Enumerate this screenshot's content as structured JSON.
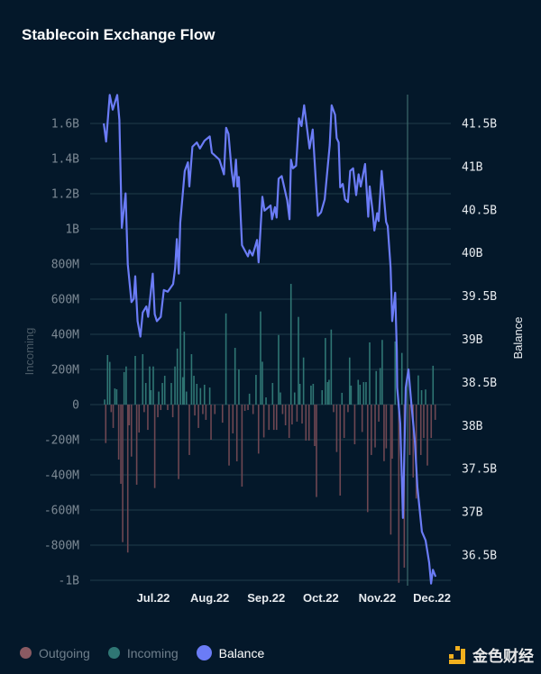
{
  "title": "Stablecoin Exchange Flow",
  "legend": [
    {
      "label": "Outgoing",
      "color": "#8a5a62"
    },
    {
      "label": "Incoming",
      "color": "#2f7674"
    },
    {
      "label": "Balance",
      "color": "#6b7cf6"
    }
  ],
  "watermark": "金色财经",
  "chart_data": {
    "type": "bar+line",
    "title": "Stablecoin Exchange Flow",
    "x_unit": "days since 2022-07-01",
    "x_ticks": [
      {
        "label": "Jul.22",
        "day": 0
      },
      {
        "label": "Aug.22",
        "day": 31
      },
      {
        "label": "Sep.22",
        "day": 62
      },
      {
        "label": "Oct.22",
        "day": 92
      },
      {
        "label": "Nov.22",
        "day": 123
      },
      {
        "label": "Dec.22",
        "day": 153
      }
    ],
    "left_axis": {
      "label": "Incoming",
      "unit": "M",
      "ylim": [
        -1000,
        1600
      ],
      "ticks": [
        {
          "label": "1.6B",
          "value": 1600
        },
        {
          "label": "1.4B",
          "value": 1400
        },
        {
          "label": "1.2B",
          "value": 1200
        },
        {
          "label": "1B",
          "value": 1000
        },
        {
          "label": "800M",
          "value": 800
        },
        {
          "label": "600M",
          "value": 600
        },
        {
          "label": "400M",
          "value": 400
        },
        {
          "label": "200M",
          "value": 200
        },
        {
          "label": "0",
          "value": 0
        },
        {
          "label": "-200M",
          "value": -200
        },
        {
          "label": "-400M",
          "value": -400
        },
        {
          "label": "-600M",
          "value": -600
        },
        {
          "label": "-800M",
          "value": -800
        },
        {
          "label": "-1B",
          "value": -1000
        }
      ]
    },
    "right_axis": {
      "label": "Balance",
      "unit": "B",
      "ylim": [
        36.17,
        41.5
      ],
      "ticks": [
        {
          "label": "41.5B",
          "value": 41.5
        },
        {
          "label": "41B",
          "value": 41
        },
        {
          "label": "40.5B",
          "value": 40.5
        },
        {
          "label": "40B",
          "value": 40
        },
        {
          "label": "39.5B",
          "value": 39.5
        },
        {
          "label": "39B",
          "value": 39
        },
        {
          "label": "38.5B",
          "value": 38.5
        },
        {
          "label": "38B",
          "value": 38
        },
        {
          "label": "37.5B",
          "value": 37.5
        },
        {
          "label": "37B",
          "value": 37
        },
        {
          "label": "36.5B",
          "value": 36.5
        }
      ]
    },
    "grid": true,
    "legend_position": "bottom-left",
    "series": [
      {
        "name": "Incoming",
        "type": "bar",
        "points": [
          [
            -26.7,
            29
          ],
          [
            -25.1,
            282
          ],
          [
            -23.9,
            243
          ],
          [
            -21.1,
            92
          ],
          [
            -20.1,
            87
          ],
          [
            -16.0,
            185
          ],
          [
            -14.9,
            217
          ],
          [
            -9.9,
            277
          ],
          [
            -5.8,
            287
          ],
          [
            -4.1,
            123
          ],
          [
            -2.0,
            217
          ],
          [
            -1.3,
            82
          ],
          [
            0,
            217
          ],
          [
            3.0,
            74
          ],
          [
            5.0,
            123
          ],
          [
            6.3,
            164
          ],
          [
            9.9,
            123
          ],
          [
            11.9,
            217
          ],
          [
            13.2,
            319
          ],
          [
            14.9,
            585
          ],
          [
            16.2,
            156
          ],
          [
            17.0,
            415
          ],
          [
            18.2,
            74
          ],
          [
            21.0,
            287
          ],
          [
            22.3,
            164
          ],
          [
            23.9,
            118
          ],
          [
            25.9,
            94
          ],
          [
            28.1,
            113
          ],
          [
            31.0,
            97
          ],
          [
            39.9,
            519
          ],
          [
            44.9,
            323
          ],
          [
            47.0,
            200
          ],
          [
            52.8,
            62
          ],
          [
            56.4,
            169
          ],
          [
            58.9,
            530
          ],
          [
            59.9,
            244
          ],
          [
            61.9,
            41
          ],
          [
            65.5,
            123
          ],
          [
            68.8,
            396
          ],
          [
            69.8,
            69
          ],
          [
            75.6,
            687
          ],
          [
            77.6,
            69
          ],
          [
            79.7,
            499
          ],
          [
            80.5,
            118
          ],
          [
            82.5,
            268
          ],
          [
            86.6,
            108
          ],
          [
            87.8,
            118
          ],
          [
            92.7,
            82
          ],
          [
            94.5,
            379
          ],
          [
            95.7,
            128
          ],
          [
            96.5,
            141
          ],
          [
            97.7,
            427
          ],
          [
            103.6,
            67
          ],
          [
            107.8,
            268
          ],
          [
            108.6,
            108
          ],
          [
            112.5,
            141
          ],
          [
            113.5,
            113
          ],
          [
            115.5,
            128
          ],
          [
            116.8,
            128
          ],
          [
            118.8,
            354
          ],
          [
            122.4,
            191
          ],
          [
            124.6,
            208
          ],
          [
            125.7,
            368
          ],
          [
            132.8,
            359
          ],
          [
            136.5,
            294
          ],
          [
            145.5,
            166
          ],
          [
            147.3,
            82
          ],
          [
            149.5,
            86
          ],
          [
            153.6,
            221
          ]
        ]
      },
      {
        "name": "Outgoing",
        "type": "bar",
        "points": [
          [
            -26.1,
            -219
          ],
          [
            -23.1,
            -43
          ],
          [
            -22.0,
            -133
          ],
          [
            -19.0,
            -313
          ],
          [
            -17.8,
            -451
          ],
          [
            -16.8,
            -783
          ],
          [
            -14.0,
            -842
          ],
          [
            -13.2,
            -118
          ],
          [
            -12.0,
            -296
          ],
          [
            -9.1,
            -456
          ],
          [
            -7.8,
            -159
          ],
          [
            -5.0,
            -43
          ],
          [
            -3.0,
            -144
          ],
          [
            0.8,
            -475
          ],
          [
            2.5,
            -72
          ],
          [
            4.1,
            -31
          ],
          [
            7.9,
            -31
          ],
          [
            10.7,
            -72
          ],
          [
            13.9,
            -424
          ],
          [
            19.8,
            -287
          ],
          [
            22.8,
            -62
          ],
          [
            24.8,
            -133
          ],
          [
            27.2,
            -54
          ],
          [
            28.9,
            -87
          ],
          [
            31.7,
            -200
          ],
          [
            33.8,
            -54
          ],
          [
            38.0,
            -103
          ],
          [
            41.6,
            -347
          ],
          [
            43.7,
            -164
          ],
          [
            45.9,
            -323
          ],
          [
            48.7,
            -467
          ],
          [
            50.3,
            -36
          ],
          [
            52.0,
            -31
          ],
          [
            54.8,
            -54
          ],
          [
            57.8,
            -279
          ],
          [
            60.7,
            -187
          ],
          [
            63.5,
            -144
          ],
          [
            66.2,
            -144
          ],
          [
            67.7,
            -144
          ],
          [
            71.0,
            -54
          ],
          [
            72.6,
            -118
          ],
          [
            74.6,
            -190
          ],
          [
            76.2,
            -113
          ],
          [
            78.9,
            -97
          ],
          [
            81.7,
            -108
          ],
          [
            83.8,
            -205
          ],
          [
            85.5,
            -205
          ],
          [
            88.6,
            -236
          ],
          [
            89.6,
            -526
          ],
          [
            99.0,
            -43
          ],
          [
            100.7,
            -270
          ],
          [
            102.6,
            -518
          ],
          [
            104.8,
            -190
          ],
          [
            106.9,
            -43
          ],
          [
            110.6,
            -226
          ],
          [
            114.7,
            -156
          ],
          [
            117.7,
            -612
          ],
          [
            119.7,
            -287
          ],
          [
            121.8,
            -244
          ],
          [
            123.8,
            -97
          ],
          [
            126.7,
            -322
          ],
          [
            127.9,
            -249
          ],
          [
            130.4,
            -740
          ],
          [
            131.2,
            -308
          ],
          [
            134.8,
            -1014
          ],
          [
            137.8,
            -928
          ],
          [
            140.8,
            -287
          ],
          [
            142.7,
            -415
          ],
          [
            144.4,
            -535
          ],
          [
            146.9,
            -287
          ],
          [
            148.5,
            -190
          ],
          [
            150.5,
            -347
          ],
          [
            152.6,
            -190
          ],
          [
            154.8,
            -87
          ]
        ]
      },
      {
        "name": "Balance",
        "type": "line",
        "axis": "right",
        "points": [
          [
            -27.2,
            41.5
          ],
          [
            -25.9,
            41.29
          ],
          [
            -23.9,
            41.83
          ],
          [
            -22.3,
            41.66
          ],
          [
            -19.8,
            41.83
          ],
          [
            -18.6,
            41.54
          ],
          [
            -17.3,
            40.29
          ],
          [
            -15.2,
            40.69
          ],
          [
            -14.0,
            39.87
          ],
          [
            -12.0,
            39.43
          ],
          [
            -10.7,
            39.47
          ],
          [
            -9.9,
            39.73
          ],
          [
            -8.6,
            39.21
          ],
          [
            -7.1,
            39.03
          ],
          [
            -5.8,
            39.31
          ],
          [
            -3.8,
            39.38
          ],
          [
            -2.8,
            39.26
          ],
          [
            -0.3,
            39.76
          ],
          [
            0.8,
            39.29
          ],
          [
            2.0,
            39.21
          ],
          [
            4.1,
            39.26
          ],
          [
            5.8,
            39.57
          ],
          [
            7.9,
            39.55
          ],
          [
            10.9,
            39.64
          ],
          [
            12.0,
            39.82
          ],
          [
            12.9,
            40.16
          ],
          [
            14.0,
            39.76
          ],
          [
            14.8,
            40.35
          ],
          [
            17.3,
            40.95
          ],
          [
            19.0,
            41.05
          ],
          [
            19.8,
            40.77
          ],
          [
            21.5,
            41.23
          ],
          [
            23.9,
            41.28
          ],
          [
            25.6,
            41.21
          ],
          [
            28.1,
            41.3
          ],
          [
            31.0,
            41.35
          ],
          [
            32.2,
            41.16
          ],
          [
            36.3,
            41.08
          ],
          [
            38.8,
            40.91
          ],
          [
            40.0,
            41.45
          ],
          [
            41.3,
            41.38
          ],
          [
            43.0,
            40.95
          ],
          [
            44.2,
            40.77
          ],
          [
            45.4,
            41.08
          ],
          [
            46.2,
            40.77
          ],
          [
            47.0,
            40.88
          ],
          [
            48.7,
            40.09
          ],
          [
            52.0,
            39.96
          ],
          [
            52.8,
            40.03
          ],
          [
            54.5,
            39.97
          ],
          [
            57.0,
            40.15
          ],
          [
            57.8,
            39.89
          ],
          [
            59.9,
            40.65
          ],
          [
            61.1,
            40.49
          ],
          [
            64.4,
            40.55
          ],
          [
            65.2,
            40.39
          ],
          [
            66.8,
            40.53
          ],
          [
            67.7,
            40.41
          ],
          [
            68.8,
            40.86
          ],
          [
            70.5,
            40.89
          ],
          [
            73.5,
            40.61
          ],
          [
            74.8,
            40.39
          ],
          [
            75.6,
            41.08
          ],
          [
            76.7,
            40.98
          ],
          [
            78.4,
            41.01
          ],
          [
            80.0,
            41.56
          ],
          [
            81.4,
            41.47
          ],
          [
            82.8,
            41.71
          ],
          [
            85.8,
            41.21
          ],
          [
            87.5,
            41.43
          ],
          [
            90.4,
            40.43
          ],
          [
            92.1,
            40.47
          ],
          [
            94.1,
            40.62
          ],
          [
            96.9,
            41.25
          ],
          [
            97.9,
            41.71
          ],
          [
            99.8,
            41.6
          ],
          [
            100.7,
            41.33
          ],
          [
            101.8,
            41.28
          ],
          [
            102.6,
            40.76
          ],
          [
            104.0,
            40.8
          ],
          [
            105.3,
            40.62
          ],
          [
            106.9,
            40.59
          ],
          [
            108.1,
            40.95
          ],
          [
            109.7,
            40.98
          ],
          [
            111.4,
            40.67
          ],
          [
            112.7,
            40.91
          ],
          [
            113.9,
            40.77
          ],
          [
            116.3,
            41.03
          ],
          [
            118.0,
            40.42
          ],
          [
            118.8,
            40.77
          ],
          [
            120.5,
            40.47
          ],
          [
            121.4,
            40.26
          ],
          [
            122.9,
            40.46
          ],
          [
            123.7,
            40.37
          ],
          [
            125.4,
            40.95
          ],
          [
            127.8,
            40.36
          ],
          [
            128.7,
            40.31
          ],
          [
            130.3,
            39.83
          ],
          [
            131.2,
            39.21
          ],
          [
            132.8,
            39.54
          ],
          [
            133.7,
            38.86
          ],
          [
            133.9,
            38.44
          ],
          [
            135.6,
            38.02
          ],
          [
            137.1,
            36.93
          ],
          [
            138.6,
            38.44
          ],
          [
            140.1,
            38.65
          ],
          [
            141.6,
            38.28
          ],
          [
            143.6,
            37.82
          ],
          [
            145.0,
            37.29
          ],
          [
            147.5,
            36.77
          ],
          [
            149.5,
            36.67
          ],
          [
            151.5,
            36.41
          ],
          [
            152.5,
            36.17
          ],
          [
            153.5,
            36.33
          ],
          [
            155.0,
            36.25
          ]
        ]
      }
    ]
  }
}
